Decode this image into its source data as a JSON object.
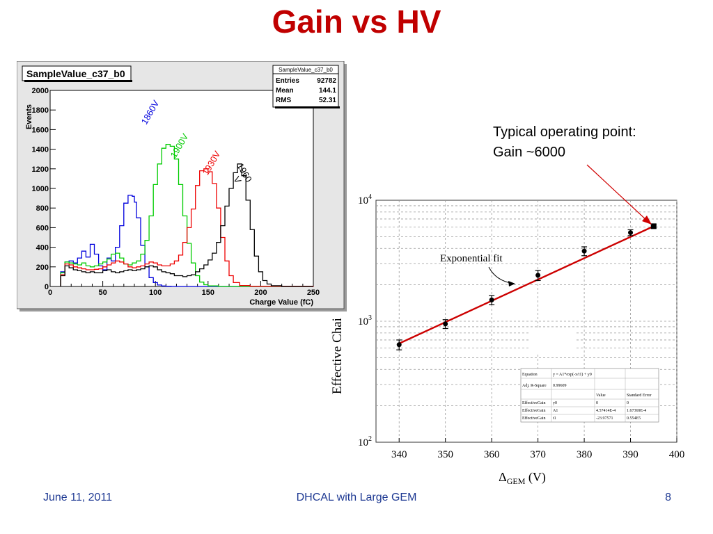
{
  "slide": {
    "title": "Gain vs HV",
    "annotation_line1": "Typical operating point:",
    "annotation_line2": "Gain ~6000",
    "footer_date": "June 11, 2011",
    "footer_center": "DHCAL with Large GEM",
    "page_number": "8",
    "colors": {
      "title": "#c00000",
      "footer": "#1f3a93",
      "arrow": "#d00000"
    }
  },
  "chart_data": [
    {
      "type": "line",
      "title": "SampleValue_c37_b0",
      "xlabel": "Charge Value (fC)",
      "ylabel": "Events",
      "xlim": [
        0,
        250
      ],
      "ylim": [
        0,
        2000
      ],
      "x_ticks": [
        0,
        50,
        100,
        150,
        200,
        250
      ],
      "y_ticks": [
        0,
        200,
        400,
        600,
        800,
        1000,
        1200,
        1400,
        1600,
        1800,
        2000
      ],
      "y_tick_labels": [
        "0",
        "200",
        "400",
        "600",
        "800",
        "1000",
        "1200",
        "1400",
        "1600",
        "1800",
        "2000"
      ],
      "grid": false,
      "stats_box": {
        "name": "SampleValue_c37_b0",
        "rows": [
          {
            "label": "Entries",
            "value": "92782"
          },
          {
            "label": "Mean",
            "value": "144.1"
          },
          {
            "label": "RMS",
            "value": "52.31"
          }
        ]
      },
      "series": [
        {
          "name": "1860V",
          "color": "#0000dd",
          "x": [
            10,
            14,
            18,
            22,
            26,
            30,
            34,
            38,
            42,
            46,
            50,
            54,
            58,
            62,
            66,
            70,
            74,
            78,
            80,
            82,
            86,
            90,
            94,
            98,
            102,
            106,
            110,
            115,
            120,
            130,
            140,
            150,
            170,
            200,
            250
          ],
          "y": [
            150,
            250,
            260,
            240,
            290,
            360,
            300,
            430,
            330,
            210,
            170,
            290,
            260,
            400,
            620,
            850,
            930,
            920,
            860,
            700,
            420,
            200,
            90,
            40,
            15,
            5,
            2,
            1,
            0,
            0,
            0,
            0,
            0,
            0,
            0
          ]
        },
        {
          "name": "1900V",
          "color": "#00cc00",
          "x": [
            10,
            14,
            18,
            22,
            26,
            30,
            34,
            38,
            42,
            46,
            50,
            54,
            58,
            62,
            66,
            70,
            74,
            78,
            82,
            86,
            90,
            94,
            98,
            102,
            106,
            110,
            114,
            118,
            122,
            126,
            130,
            134,
            138,
            142,
            146,
            150,
            160,
            180,
            250
          ],
          "y": [
            140,
            250,
            240,
            230,
            220,
            240,
            210,
            200,
            210,
            230,
            250,
            280,
            330,
            340,
            290,
            230,
            220,
            240,
            260,
            330,
            470,
            720,
            1040,
            1250,
            1410,
            1450,
            1430,
            1300,
            1040,
            720,
            440,
            240,
            110,
            45,
            18,
            6,
            0,
            0,
            0
          ]
        },
        {
          "name": "1930V",
          "color": "#ee0000",
          "x": [
            10,
            14,
            18,
            22,
            26,
            30,
            34,
            38,
            42,
            46,
            50,
            54,
            58,
            62,
            66,
            70,
            74,
            78,
            82,
            86,
            90,
            94,
            98,
            102,
            106,
            110,
            114,
            118,
            122,
            126,
            130,
            134,
            138,
            142,
            146,
            150,
            154,
            158,
            162,
            166,
            170,
            174,
            180,
            190,
            250
          ],
          "y": [
            120,
            230,
            220,
            200,
            190,
            180,
            170,
            170,
            175,
            180,
            200,
            220,
            240,
            260,
            250,
            230,
            200,
            190,
            200,
            210,
            230,
            250,
            240,
            220,
            210,
            210,
            230,
            260,
            320,
            450,
            600,
            790,
            1030,
            1180,
            1200,
            1170,
            1050,
            800,
            500,
            260,
            110,
            40,
            10,
            2,
            0
          ]
        },
        {
          "name": "1960 V",
          "color": "#000000",
          "x": [
            10,
            14,
            18,
            22,
            26,
            30,
            34,
            38,
            42,
            46,
            50,
            54,
            58,
            62,
            66,
            70,
            74,
            78,
            82,
            86,
            90,
            94,
            98,
            102,
            106,
            110,
            114,
            118,
            122,
            126,
            130,
            134,
            138,
            142,
            146,
            150,
            154,
            158,
            162,
            166,
            170,
            174,
            178,
            182,
            186,
            190,
            194,
            198,
            202,
            206,
            210,
            220,
            250
          ],
          "y": [
            110,
            210,
            190,
            170,
            160,
            150,
            140,
            150,
            140,
            140,
            160,
            170,
            150,
            140,
            150,
            160,
            170,
            160,
            170,
            180,
            200,
            210,
            200,
            170,
            150,
            140,
            130,
            110,
            110,
            100,
            110,
            120,
            150,
            180,
            220,
            270,
            340,
            450,
            620,
            820,
            1000,
            1160,
            1250,
            1130,
            880,
            580,
            310,
            150,
            60,
            25,
            8,
            0,
            0
          ]
        }
      ]
    },
    {
      "type": "scatter",
      "xlabel": "ΔGEM (V)",
      "ylabel": "Effective Chai",
      "xlim": [
        335,
        400
      ],
      "y_scale": "log",
      "ylim": [
        100,
        10000
      ],
      "x_ticks": [
        340,
        350,
        360,
        370,
        380,
        390,
        400
      ],
      "grid": true,
      "series": [
        {
          "name": "data",
          "color": "#000000",
          "x": [
            340,
            350,
            360,
            370,
            380,
            390,
            395
          ],
          "y": [
            640,
            950,
            1500,
            2400,
            3800,
            5400,
            6100
          ],
          "y_err": [
            60,
            80,
            130,
            230,
            320,
            300,
            200
          ]
        },
        {
          "name": "Exponential fit",
          "color": "#cc0000",
          "x": [
            340,
            395
          ],
          "y": [
            655,
            6100
          ]
        }
      ],
      "annotations": [
        {
          "text": "Exponential fit"
        }
      ],
      "fit_table": {
        "rows": [
          [
            "Equation",
            "y = A1*exp(-x/t1) + y0",
            "",
            ""
          ],
          [
            "Adj. R-Square",
            "0.99609",
            "",
            ""
          ],
          [
            "",
            "",
            "Value",
            "Standard Error"
          ],
          [
            "EffectiveGain",
            "y0",
            "0",
            "0"
          ],
          [
            "EffectiveGain",
            "A1",
            "4.57414E-4",
            "1.67369E-4"
          ],
          [
            "EffectiveGain",
            "t1",
            "-23.97571",
            "0.554E5"
          ]
        ]
      }
    }
  ]
}
